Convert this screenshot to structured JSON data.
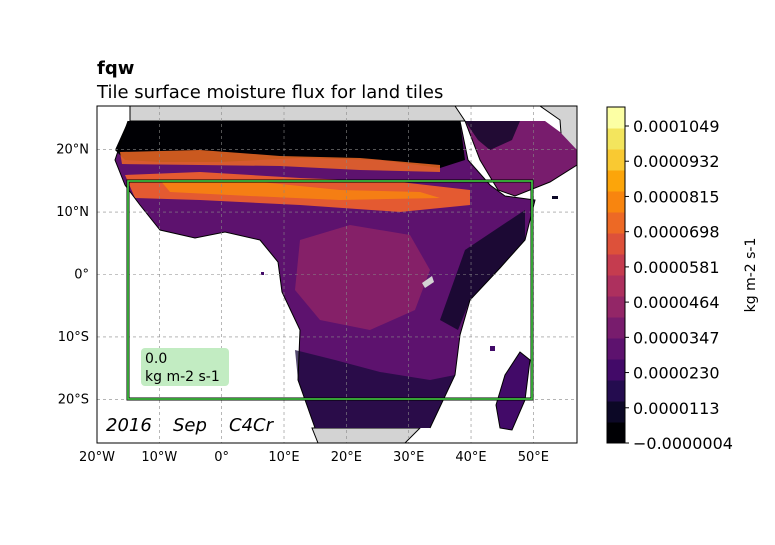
{
  "title": {
    "variable": "fqw",
    "long_name": "Tile surface moisture flux for land tiles"
  },
  "run_label": {
    "year": "2016",
    "month": "Sep",
    "experiment": "C4Cr"
  },
  "info_box": {
    "value": "0.0",
    "units": "kg m-2 s-1"
  },
  "map": {
    "projection": "PlateCarree",
    "lon_range": [
      -20,
      57
    ],
    "lat_range": [
      -27,
      27
    ],
    "gridlines": true,
    "x_ticks": [
      "20°W",
      "10°W",
      "0°",
      "10°E",
      "20°E",
      "30°E",
      "40°E",
      "50°E"
    ],
    "y_ticks": [
      "20°N",
      "10°N",
      "0°",
      "10°S",
      "20°S"
    ],
    "land_color": "#d3d3d3",
    "region_box": {
      "lon": [
        -15,
        50
      ],
      "lat": [
        -20,
        15
      ],
      "color": "#44cc44"
    },
    "palette": "inferno"
  },
  "colorbar": {
    "label": "kg m-2 s-1",
    "ticks": [
      "0.0001049",
      "0.0000932",
      "0.0000815",
      "0.0000698",
      "0.0000581",
      "0.0000464",
      "0.0000347",
      "0.0000230",
      "0.0000113",
      "−0.0000004"
    ],
    "colors": [
      "#000004",
      "#0c0826",
      "#240c4f",
      "#420a68",
      "#5d126e",
      "#781c6d",
      "#932667",
      "#ad305e",
      "#c53c4f",
      "#dd513a",
      "#ed6925",
      "#f8850f",
      "#fca50a",
      "#f9c932",
      "#f3e55d",
      "#fcffa4"
    ]
  }
}
